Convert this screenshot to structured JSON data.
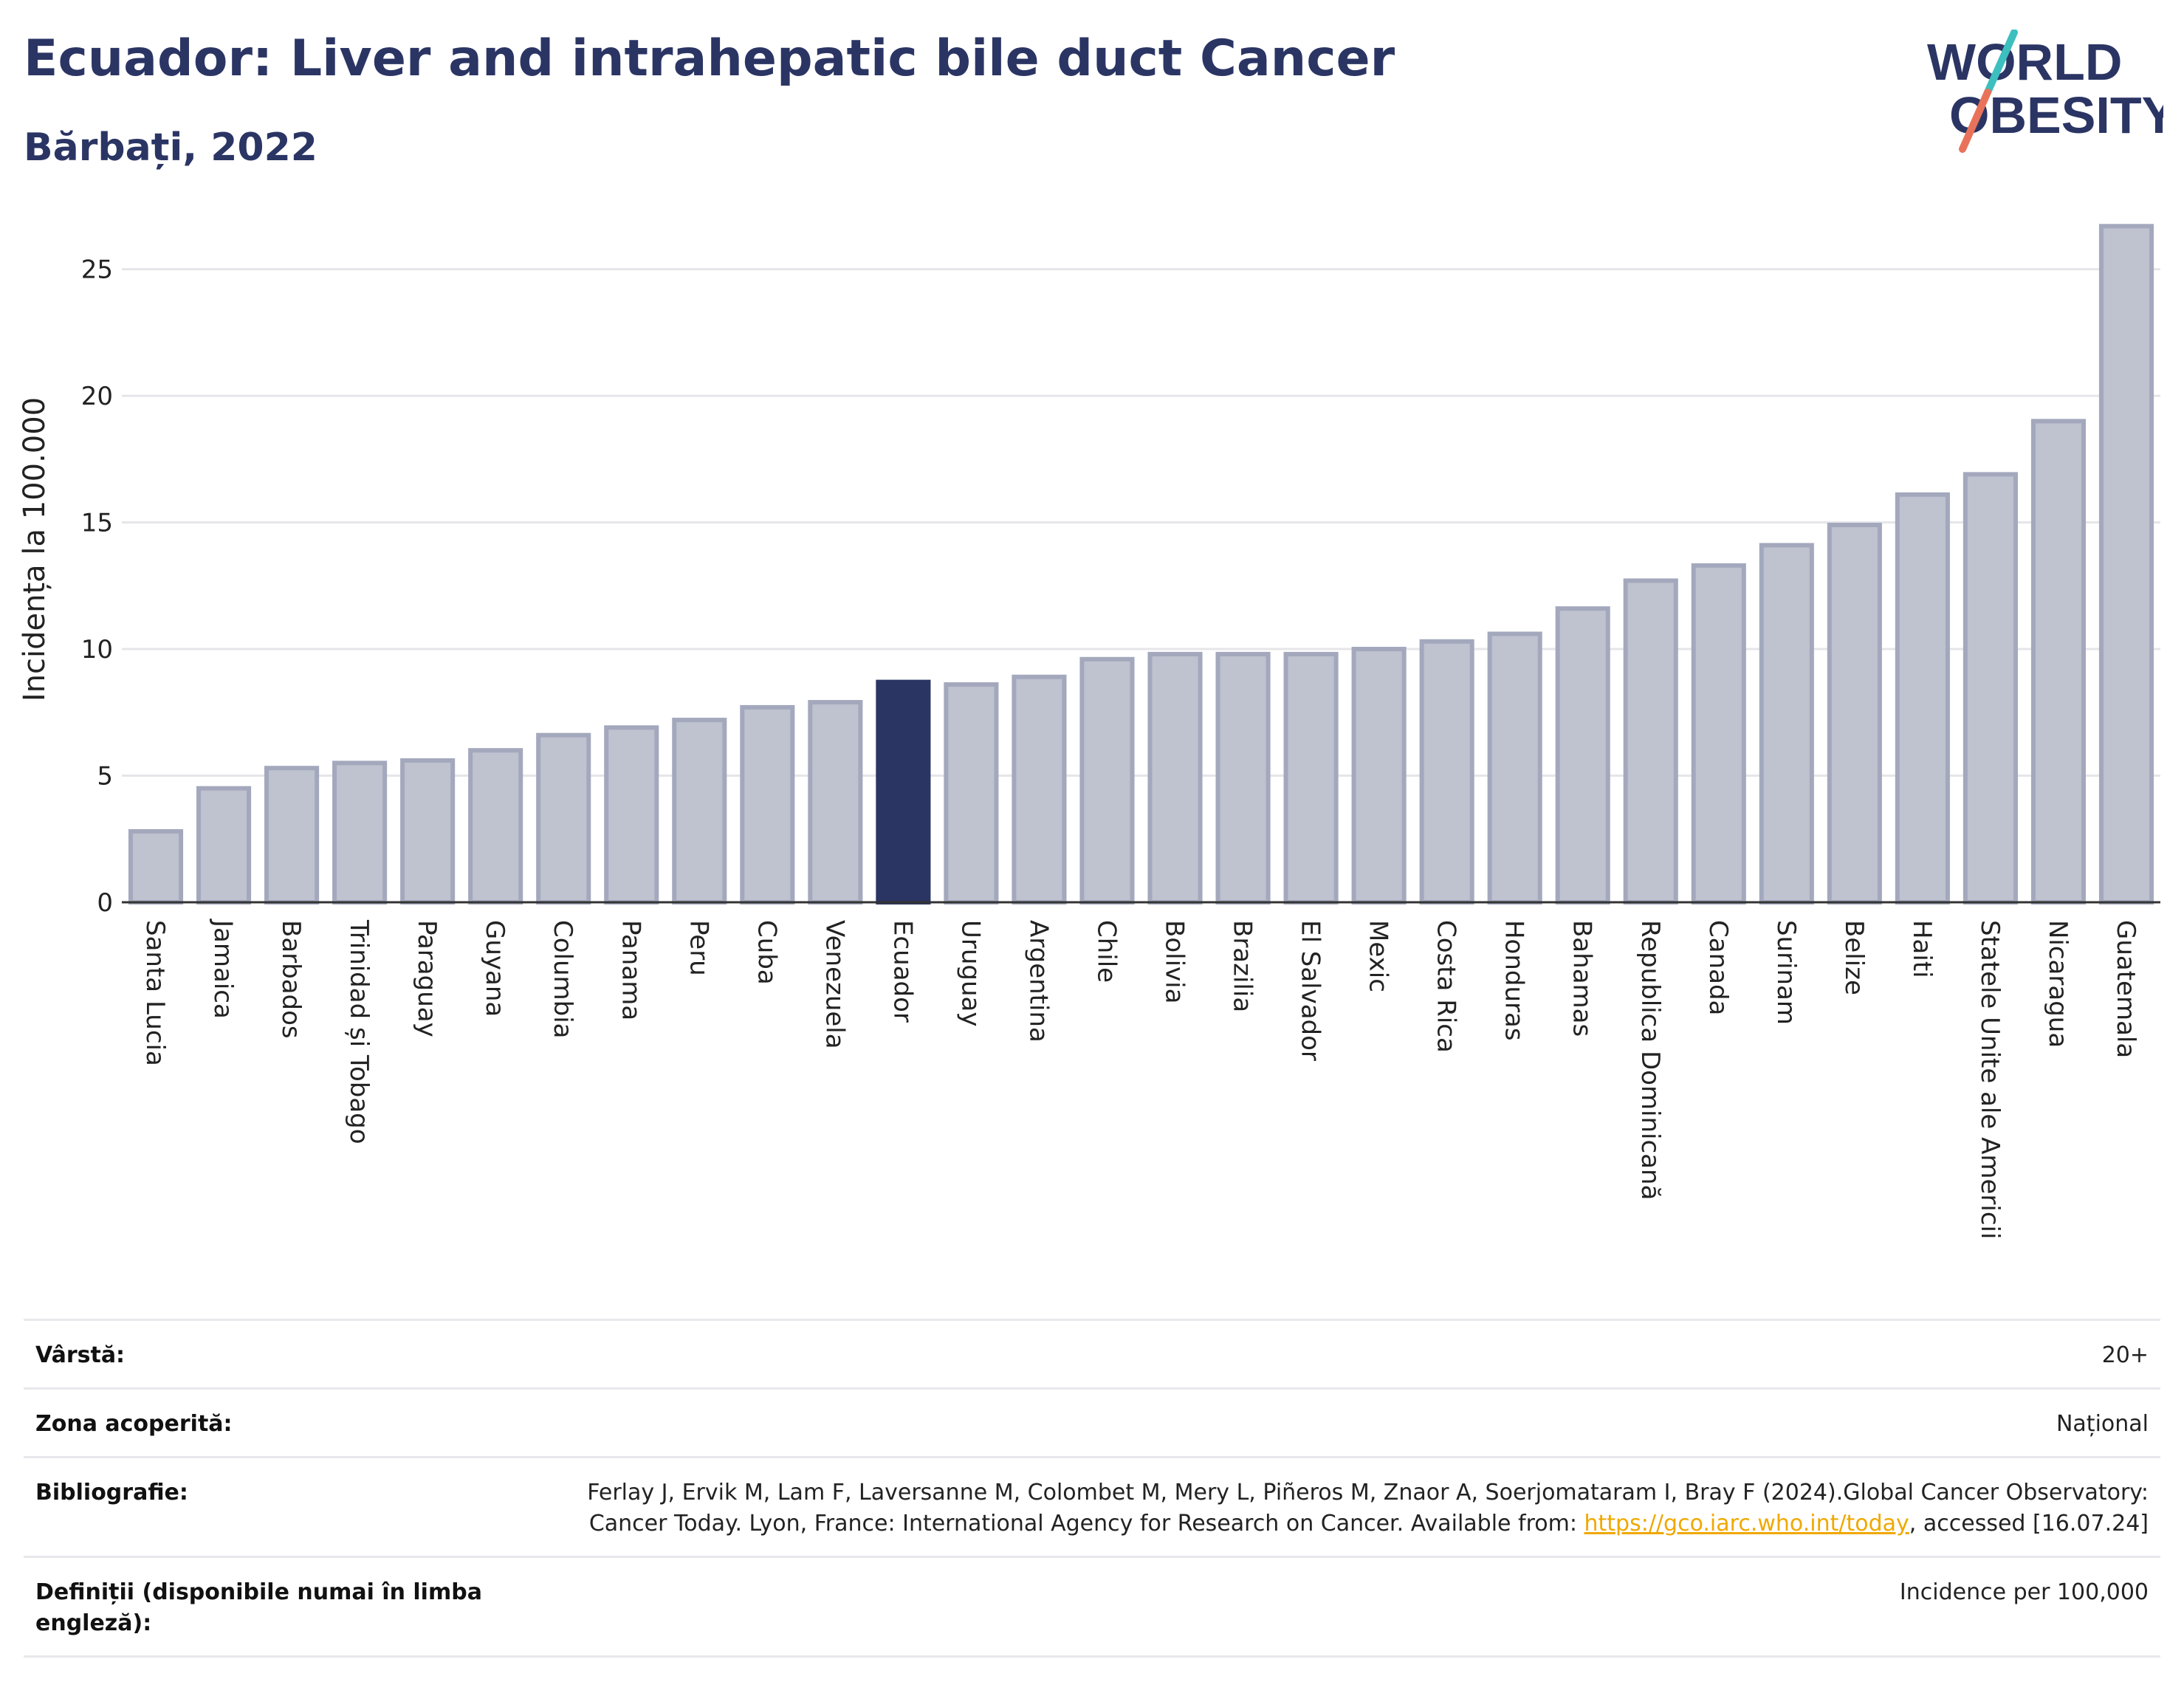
{
  "header": {
    "title": "Ecuador: Liver and intrahepatic bile duct Cancer",
    "subtitle": "Bărbați, 2022"
  },
  "logo": {
    "line1": "WORLD",
    "line2": "OBESITY",
    "colors": {
      "text": "#2b3564",
      "slash_top": "#3dbfbf",
      "slash_bottom": "#e8735a"
    }
  },
  "chart_data": {
    "type": "bar",
    "title": "",
    "xlabel": "",
    "ylabel": "Incidența la 100.000",
    "ylim": [
      0,
      27
    ],
    "yticks": [
      0,
      5,
      10,
      15,
      20,
      25
    ],
    "grid": true,
    "highlight": "Ecuador",
    "colors": {
      "bar": "#bfc2cf",
      "bar_edge": "#a3a8bd",
      "highlight": "#2b3564"
    },
    "categories": [
      "Santa Lucia",
      "Jamaica",
      "Barbados",
      "Trinidad și Tobago",
      "Paraguay",
      "Guyana",
      "Columbia",
      "Panama",
      "Peru",
      "Cuba",
      "Venezuela",
      "Ecuador",
      "Uruguay",
      "Argentina",
      "Chile",
      "Bolivia",
      "Brazilia",
      "El Salvador",
      "Mexic",
      "Costa Rica",
      "Honduras",
      "Bahamas",
      "Republica Dominicană",
      "Canada",
      "Surinam",
      "Belize",
      "Haiti",
      "Statele Unite ale Americii",
      "Nicaragua",
      "Guatemala"
    ],
    "values": [
      2.8,
      4.5,
      5.3,
      5.5,
      5.6,
      6.0,
      6.6,
      6.9,
      7.2,
      7.7,
      7.9,
      8.7,
      8.6,
      8.9,
      9.6,
      9.8,
      9.8,
      9.8,
      10.0,
      10.3,
      10.6,
      11.6,
      12.7,
      13.3,
      14.1,
      14.9,
      16.1,
      16.9,
      19.0,
      26.7
    ]
  },
  "meta": {
    "rows": [
      {
        "key": "Vârstă:",
        "value": "20+"
      },
      {
        "key": "Zona acoperită:",
        "value": "Național"
      },
      {
        "key": "Bibliografie:",
        "value_pre": "Ferlay J, Ervik M, Lam F, Laversanne M, Colombet M, Mery L, Piñeros M, Znaor A, Soerjomataram I, Bray F (2024).Global Cancer Observatory: Cancer Today. Lyon, France: International Agency for Research on Cancer. Available from: ",
        "link": "https://gco.iarc.who.int/today",
        "value_post": ", accessed [16.07.24]"
      },
      {
        "key": "Definiții (disponibile numai în limba engleză):",
        "value": "Incidence per 100,000"
      }
    ]
  }
}
